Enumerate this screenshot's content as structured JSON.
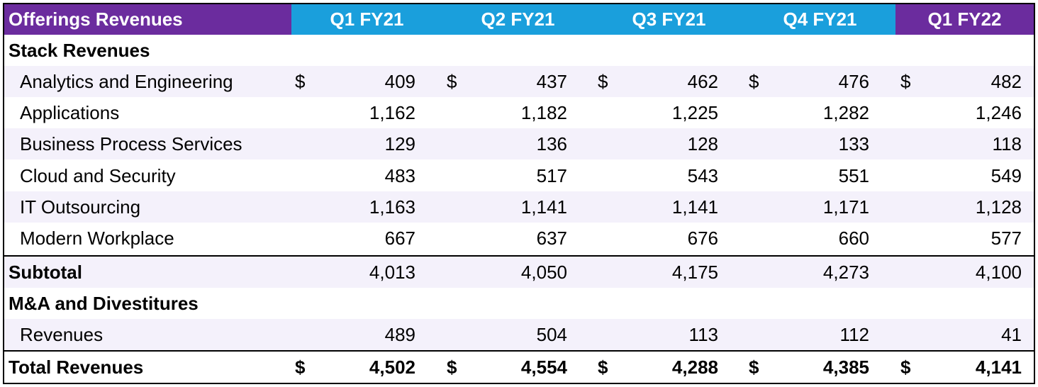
{
  "header": {
    "title": "Offerings Revenues",
    "quarters": [
      "Q1 FY21",
      "Q2 FY21",
      "Q3 FY21",
      "Q4 FY21",
      "Q1 FY22"
    ]
  },
  "sections": {
    "stack_label": "Stack Revenues",
    "ma_label": "M&A and Divestitures"
  },
  "currency_symbol": "$",
  "rows": {
    "analytics": {
      "label": "Analytics and Engineering",
      "values": [
        "409",
        "437",
        "462",
        "476",
        "482"
      ]
    },
    "applications": {
      "label": "Applications",
      "values": [
        "1,162",
        "1,182",
        "1,225",
        "1,282",
        "1,246"
      ]
    },
    "bps": {
      "label": "Business Process Services",
      "values": [
        "129",
        "136",
        "128",
        "133",
        "118"
      ]
    },
    "cloud": {
      "label": "Cloud and Security",
      "values": [
        "483",
        "517",
        "543",
        "551",
        "549"
      ]
    },
    "ito": {
      "label": "IT Outsourcing",
      "values": [
        "1,163",
        "1,141",
        "1,141",
        "1,171",
        "1,128"
      ]
    },
    "workplace": {
      "label": "Modern Workplace",
      "values": [
        "667",
        "637",
        "676",
        "660",
        "577"
      ]
    },
    "subtotal": {
      "label": "Subtotal",
      "values": [
        "4,013",
        "4,050",
        "4,175",
        "4,273",
        "4,100"
      ]
    },
    "ma_revenues": {
      "label": "Revenues",
      "values": [
        "489",
        "504",
        "113",
        "112",
        "41"
      ]
    },
    "total": {
      "label": "Total Revenues",
      "values": [
        "4,502",
        "4,554",
        "4,288",
        "4,385",
        "4,141"
      ]
    }
  },
  "colors": {
    "header_purple": "#6b2c9e",
    "header_blue": "#1a9fdc",
    "row_shade": "#f4f1fb"
  }
}
